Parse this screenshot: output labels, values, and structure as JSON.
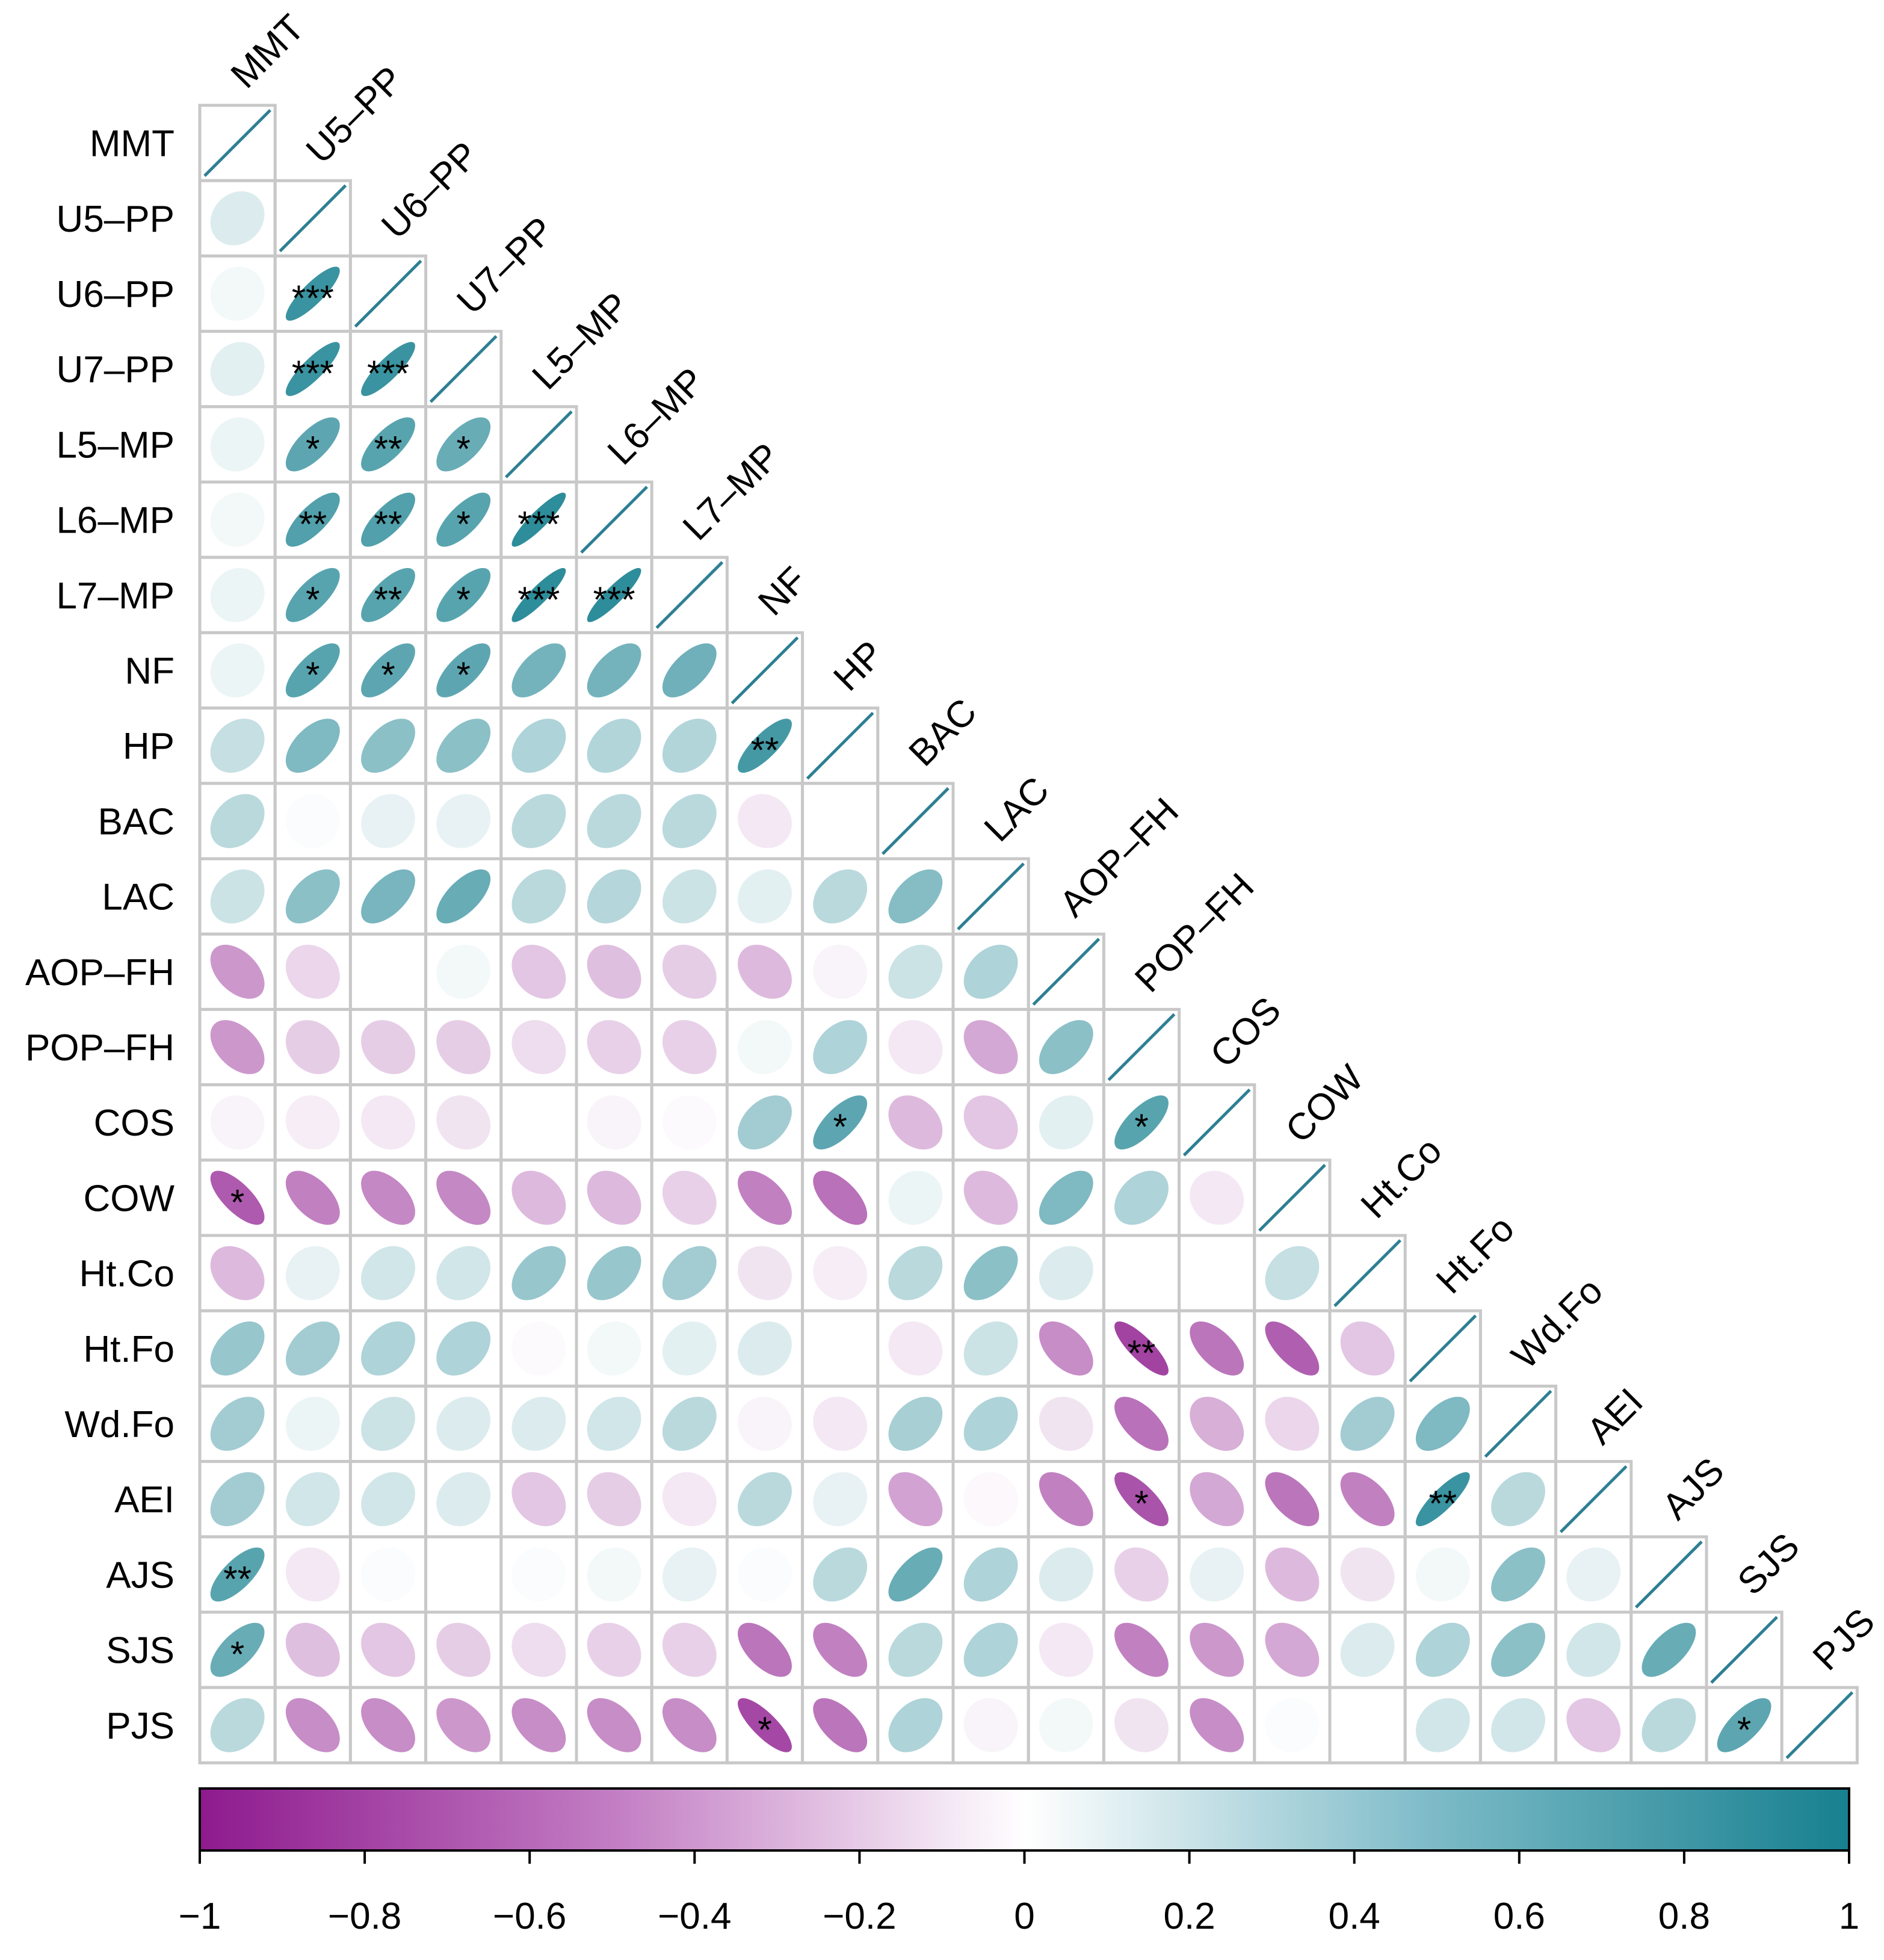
{
  "chart_data": {
    "type": "heatmap",
    "subtype": "lower-triangle correlation matrix with ellipses",
    "variables": [
      "MMT",
      "U5–PP",
      "U6–PP",
      "U7–PP",
      "L5–MP",
      "L6–MP",
      "L7–MP",
      "NF",
      "HP",
      "BAC",
      "LAC",
      "AOP–FH",
      "POP–FH",
      "COS",
      "COW",
      "Ht.Co",
      "Ht.Fo",
      "Wd.Fo",
      "AEI",
      "AJS",
      "SJS",
      "PJS"
    ],
    "correlations": [
      [
        1
      ],
      [
        0.15,
        1
      ],
      [
        0.05,
        0.85,
        1
      ],
      [
        0.12,
        0.85,
        0.85,
        1
      ],
      [
        0.08,
        0.7,
        0.72,
        0.65,
        1
      ],
      [
        0.05,
        0.75,
        0.75,
        0.72,
        0.9,
        1
      ],
      [
        0.08,
        0.72,
        0.72,
        0.72,
        0.9,
        0.9,
        1
      ],
      [
        0.08,
        0.72,
        0.7,
        0.7,
        0.6,
        0.6,
        0.62,
        1
      ],
      [
        0.25,
        0.55,
        0.5,
        0.5,
        0.35,
        0.33,
        0.33,
        0.8,
        1
      ],
      [
        0.3,
        0.02,
        0.1,
        0.1,
        0.3,
        0.3,
        0.3,
        -0.1,
        0,
        1
      ],
      [
        0.22,
        0.5,
        0.58,
        0.65,
        0.3,
        0.32,
        0.22,
        0.12,
        0.3,
        0.52,
        1
      ],
      [
        -0.45,
        -0.18,
        0,
        0.05,
        -0.25,
        -0.28,
        -0.22,
        -0.3,
        -0.05,
        0.22,
        0.35,
        1
      ],
      [
        -0.45,
        -0.22,
        -0.22,
        -0.22,
        -0.15,
        -0.2,
        -0.2,
        0.05,
        0.35,
        -0.1,
        -0.38,
        0.5,
        1
      ],
      [
        -0.05,
        -0.08,
        -0.1,
        -0.12,
        0,
        -0.05,
        -0.02,
        0.4,
        0.7,
        -0.3,
        -0.25,
        0.12,
        0.72,
        1
      ],
      [
        -0.72,
        -0.55,
        -0.52,
        -0.52,
        -0.3,
        -0.3,
        -0.2,
        -0.55,
        -0.62,
        0.08,
        -0.3,
        0.55,
        0.35,
        -0.1,
        1
      ],
      [
        -0.3,
        0.1,
        0.2,
        0.2,
        0.45,
        0.45,
        0.4,
        -0.12,
        -0.08,
        0.3,
        0.5,
        0.15,
        0,
        0,
        0.25,
        1
      ],
      [
        0.45,
        0.4,
        0.35,
        0.35,
        -0.02,
        0.05,
        0.12,
        0.15,
        0,
        -0.1,
        0.22,
        -0.5,
        -0.82,
        -0.6,
        -0.7,
        -0.25,
        1
      ],
      [
        0.4,
        0.08,
        0.22,
        0.15,
        0.15,
        0.2,
        0.3,
        -0.05,
        -0.1,
        0.38,
        0.35,
        -0.12,
        -0.62,
        -0.35,
        -0.18,
        0.4,
        0.55,
        1
      ],
      [
        0.4,
        0.2,
        0.2,
        0.15,
        -0.25,
        -0.22,
        -0.1,
        0.3,
        0.1,
        -0.4,
        -0.03,
        -0.55,
        -0.75,
        -0.38,
        -0.6,
        -0.55,
        0.85,
        0.3,
        1
      ],
      [
        0.72,
        -0.1,
        0.02,
        0,
        0.02,
        0.05,
        0.1,
        0.02,
        0.3,
        0.65,
        0.35,
        0.15,
        -0.2,
        0.1,
        -0.3,
        -0.12,
        0.05,
        0.5,
        0.1,
        1
      ],
      [
        0.65,
        -0.28,
        -0.25,
        -0.22,
        -0.15,
        -0.2,
        -0.2,
        -0.6,
        -0.55,
        0.3,
        0.35,
        -0.1,
        -0.55,
        -0.45,
        -0.38,
        0.15,
        0.35,
        0.5,
        0.2,
        0.65,
        1
      ],
      [
        0.3,
        -0.5,
        -0.5,
        -0.45,
        -0.5,
        -0.5,
        -0.5,
        -0.8,
        -0.6,
        0.35,
        -0.05,
        0.05,
        -0.12,
        -0.5,
        0.02,
        0,
        0.2,
        0.2,
        -0.25,
        0.3,
        0.7,
        1
      ]
    ],
    "significance": [
      {
        "row": "U6–PP",
        "col": "U5–PP",
        "label": "***"
      },
      {
        "row": "U7–PP",
        "col": "U5–PP",
        "label": "***"
      },
      {
        "row": "U7–PP",
        "col": "U6–PP",
        "label": "***"
      },
      {
        "row": "L5–MP",
        "col": "U5–PP",
        "label": "*"
      },
      {
        "row": "L5–MP",
        "col": "U6–PP",
        "label": "**"
      },
      {
        "row": "L5–MP",
        "col": "U7–PP",
        "label": "*"
      },
      {
        "row": "L6–MP",
        "col": "U5–PP",
        "label": "**"
      },
      {
        "row": "L6–MP",
        "col": "U6–PP",
        "label": "**"
      },
      {
        "row": "L6–MP",
        "col": "U7–PP",
        "label": "*"
      },
      {
        "row": "L6–MP",
        "col": "L5–MP",
        "label": "***"
      },
      {
        "row": "L7–MP",
        "col": "U5–PP",
        "label": "*"
      },
      {
        "row": "L7–MP",
        "col": "U6–PP",
        "label": "**"
      },
      {
        "row": "L7–MP",
        "col": "U7–PP",
        "label": "*"
      },
      {
        "row": "L7–MP",
        "col": "L5–MP",
        "label": "***"
      },
      {
        "row": "L7–MP",
        "col": "L6–MP",
        "label": "***"
      },
      {
        "row": "NF",
        "col": "U5–PP",
        "label": "*"
      },
      {
        "row": "NF",
        "col": "U6–PP",
        "label": "*"
      },
      {
        "row": "NF",
        "col": "U7–PP",
        "label": "*"
      },
      {
        "row": "HP",
        "col": "NF",
        "label": "**"
      },
      {
        "row": "COS",
        "col": "HP",
        "label": "*"
      },
      {
        "row": "COS",
        "col": "POP–FH",
        "label": "*"
      },
      {
        "row": "COW",
        "col": "MMT",
        "label": "*"
      },
      {
        "row": "Ht.Fo",
        "col": "POP–FH",
        "label": "**"
      },
      {
        "row": "AEI",
        "col": "POP–FH",
        "label": "*"
      },
      {
        "row": "AEI",
        "col": "Ht.Fo",
        "label": "**"
      },
      {
        "row": "AJS",
        "col": "MMT",
        "label": "**"
      },
      {
        "row": "SJS",
        "col": "MMT",
        "label": "*"
      },
      {
        "row": "PJS",
        "col": "NF",
        "label": "*"
      },
      {
        "row": "PJS",
        "col": "SJS",
        "label": "*"
      }
    ],
    "colorbar": {
      "range": [
        -1,
        1
      ],
      "ticks": [
        "−1",
        "−0.8",
        "−0.6",
        "−0.4",
        "−0.2",
        "0",
        "0.2",
        "0.4",
        "0.6",
        "0.8",
        "1"
      ],
      "tick_values": [
        -1,
        -0.8,
        -0.6,
        -0.4,
        -0.2,
        0,
        0.2,
        0.4,
        0.6,
        0.8,
        1
      ]
    },
    "colors": {
      "negative": "#8e1a8e",
      "neutral": "#ffffff",
      "positive": "#17808f",
      "diagonal_line": "#2e7f93",
      "grid": "#c8c8c8"
    }
  }
}
